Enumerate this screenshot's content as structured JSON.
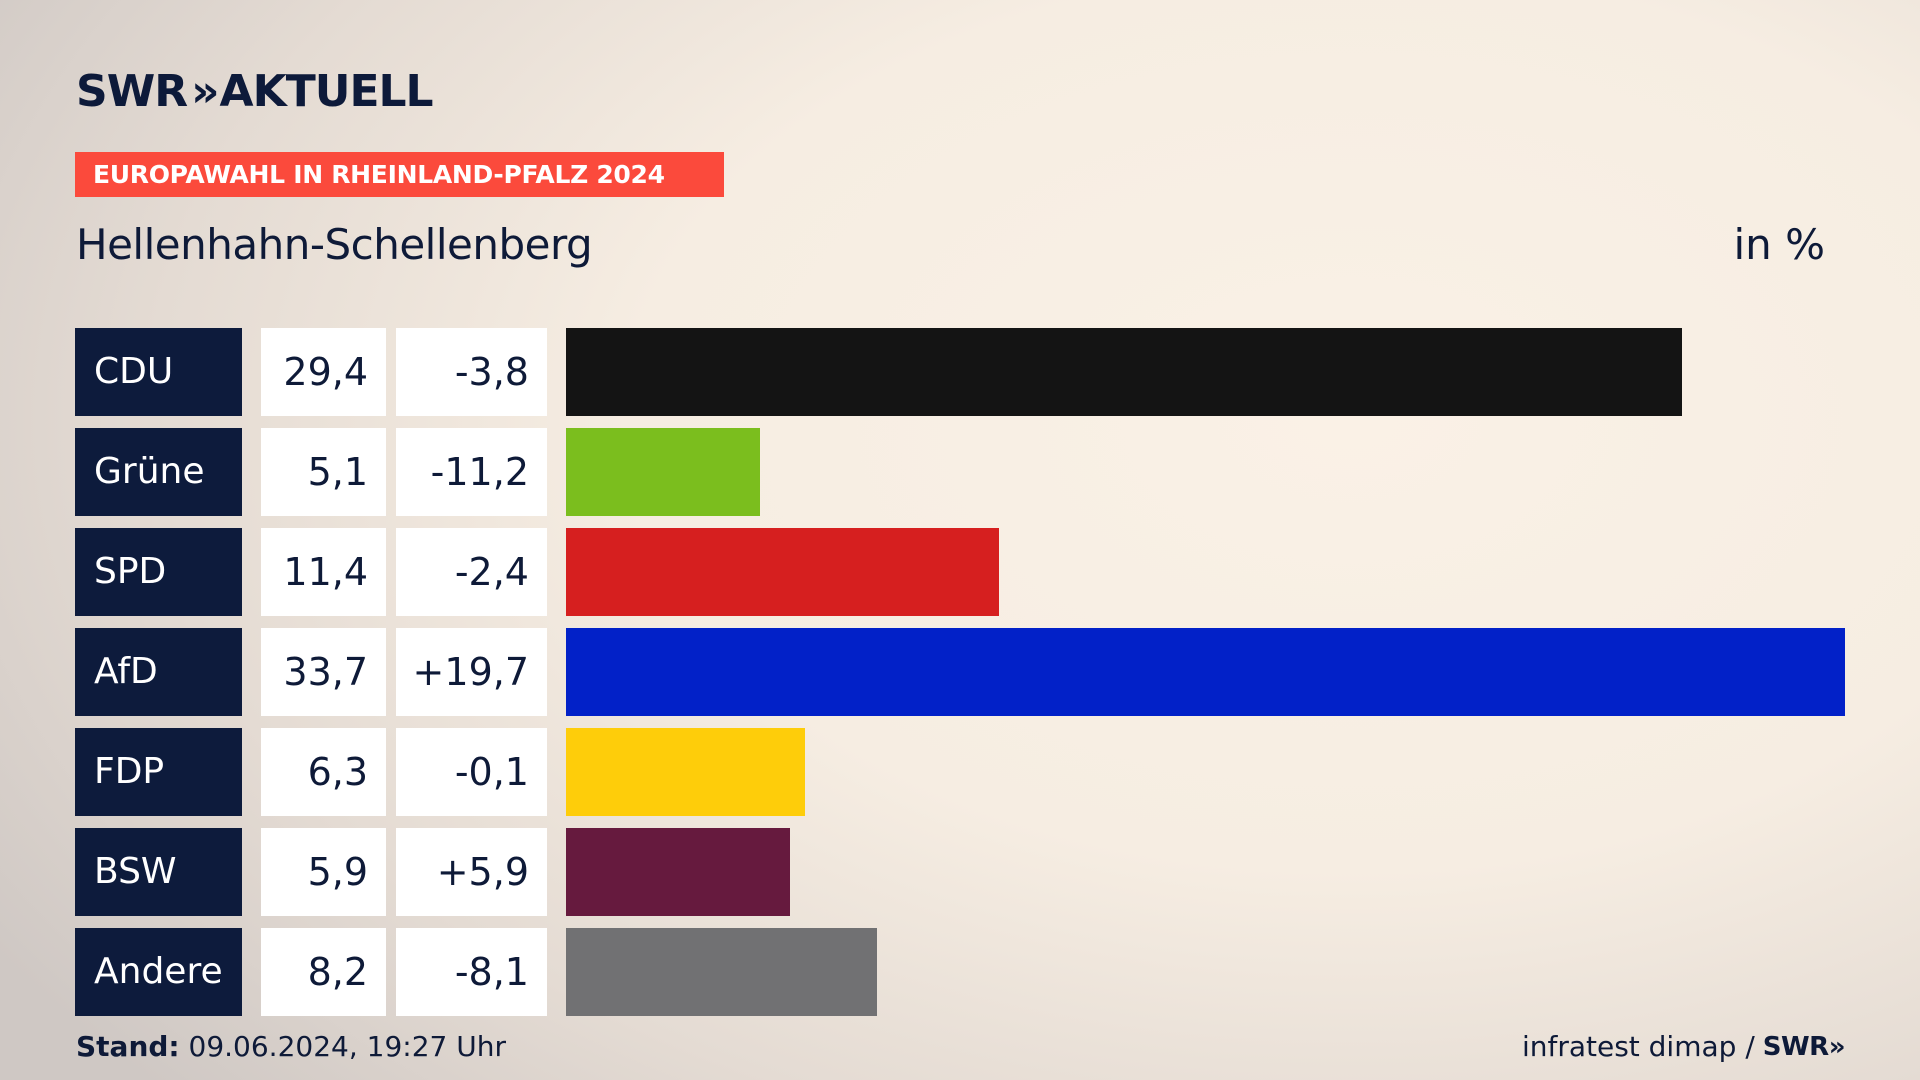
{
  "brand": {
    "name": "SWR",
    "chevrons": "»",
    "product": "AKTUELL"
  },
  "banner": "EUROPAWAHL IN RHEINLAND-PFALZ 2024",
  "place": "Hellenhahn-Schellenberg",
  "unit": "in %",
  "footer": {
    "stand_label": "Stand:",
    "stand_value": " 09.06.2024, 19:27 Uhr",
    "source": "infratest dimap / ",
    "source_logo": "SWR»"
  },
  "chart_data": {
    "type": "bar",
    "orientation": "horizontal",
    "categories": [
      "CDU",
      "Grüne",
      "SPD",
      "AfD",
      "FDP",
      "BSW",
      "Andere"
    ],
    "values": [
      29.4,
      5.1,
      11.4,
      33.7,
      6.3,
      5.9,
      8.2
    ],
    "value_labels": [
      "29,4",
      "5,1",
      "11,4",
      "33,7",
      "6,3",
      "5,9",
      "8,2"
    ],
    "diff_labels": [
      "-3,8",
      "-11,2",
      "-2,4",
      "+19,7",
      "-0,1",
      "+5,9",
      "-8,1"
    ],
    "colors": [
      "#141414",
      "#7bbe1e",
      "#d61f1f",
      "#0221c8",
      "#fecd0a",
      "#661a3e",
      "#717173"
    ]
  }
}
